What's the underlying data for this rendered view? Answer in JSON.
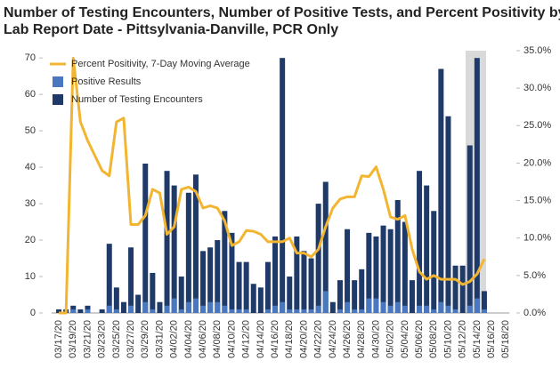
{
  "chart_data": {
    "type": "bar-line",
    "title": [
      "Number of Testing Encounters, Number of Positive Tests, and Percent Positivity by",
      "Lab Report Date - Pittsylvania-Danville, PCR Only"
    ],
    "categories": [
      "03/17/20",
      null,
      "03/19/20",
      null,
      "03/21/20",
      null,
      "03/23/20",
      null,
      "03/25/20",
      null,
      "03/27/20",
      null,
      "03/29/20",
      null,
      "03/31/20",
      null,
      "04/02/20",
      null,
      "04/04/20",
      null,
      "04/06/20",
      null,
      "04/08/20",
      null,
      "04/10/20",
      null,
      "04/12/20",
      null,
      "04/14/20",
      null,
      "04/16/20",
      null,
      "04/18/20",
      null,
      "04/20/20",
      null,
      "04/22/20",
      null,
      "04/24/20",
      null,
      "04/26/20",
      null,
      "04/28/20",
      null,
      "04/30/20",
      null,
      "05/02/20",
      null,
      "05/04/20",
      null,
      "05/06/20",
      null,
      "05/08/20",
      null,
      "05/10/20",
      null,
      "05/12/20",
      null,
      "05/14/20",
      null,
      "05/16/20",
      null,
      "05/18/20"
    ],
    "series": [
      {
        "name": "Percent Positivity, 7-Day Moving Average",
        "kind": "line",
        "axis": "y2",
        "color": "#f2b531",
        "values": [
          0,
          0,
          34,
          25.5,
          23,
          21,
          19,
          18.3,
          25.5,
          26,
          11.8,
          11.8,
          13,
          16.5,
          16,
          10.5,
          11.5,
          16.5,
          16.8,
          16.2,
          14,
          14.3,
          14,
          12.3,
          9,
          9.5,
          11,
          10.9,
          10.5,
          9.5,
          9.5,
          9.5,
          10,
          8,
          8,
          7.5,
          8.5,
          11.5,
          14,
          15.2,
          15.5,
          15.5,
          18.3,
          18.2,
          19.5,
          16.5,
          12.8,
          12.5,
          13,
          8.5,
          5.5,
          4.5,
          5,
          4.5,
          4.5,
          4.5,
          3.8,
          4.2,
          5.2,
          7.2,
          null,
          null,
          null
        ]
      },
      {
        "name": "Positive Results",
        "kind": "bar",
        "color": "#4a78c0",
        "values": [
          0,
          0,
          1,
          0,
          1,
          0,
          0,
          2,
          1,
          0,
          2,
          0,
          3,
          1,
          0,
          2,
          4,
          1,
          3,
          4,
          2,
          3,
          3,
          2,
          1,
          1,
          1,
          0,
          0,
          1,
          2,
          3,
          1,
          1,
          1,
          1,
          2,
          6,
          0,
          1,
          3,
          1,
          1,
          4,
          4,
          3,
          2,
          3,
          2,
          0,
          2,
          2,
          1,
          3,
          2,
          1,
          0,
          2,
          4,
          1,
          0,
          0,
          0
        ]
      },
      {
        "name": "Number of Testing Encounters",
        "kind": "bar",
        "color": "#1f3a68",
        "values": [
          1,
          1,
          2,
          1,
          2,
          0,
          1,
          19,
          7,
          3,
          18,
          5,
          41,
          11,
          3,
          39,
          35,
          10,
          33,
          38,
          17,
          18,
          20,
          28,
          22,
          14,
          14,
          8,
          7,
          14,
          21,
          70,
          10,
          21,
          17,
          15,
          30,
          36,
          3,
          9,
          23,
          9,
          12,
          22,
          21,
          24,
          23,
          31,
          25,
          9,
          39,
          35,
          28,
          67,
          54,
          13,
          13,
          46,
          70,
          6,
          0,
          0,
          0
        ]
      }
    ],
    "ylim": [
      0,
      72
    ],
    "yticks": [
      0,
      10,
      20,
      30,
      40,
      50,
      60,
      70
    ],
    "y2lim": [
      0,
      35
    ],
    "y2ticks": [
      {
        "value": 0,
        "label": "0.0%"
      },
      {
        "value": 5,
        "label": "5.0%"
      },
      {
        "value": 10,
        "label": "10.0%"
      },
      {
        "value": 15,
        "label": "15.0%"
      },
      {
        "value": 20,
        "label": "20.0%"
      },
      {
        "value": 25,
        "label": "25.0%"
      },
      {
        "value": 30,
        "label": "30.0%"
      },
      {
        "value": 35,
        "label": "35.0%"
      }
    ],
    "grid": false,
    "legend": "top-left"
  }
}
